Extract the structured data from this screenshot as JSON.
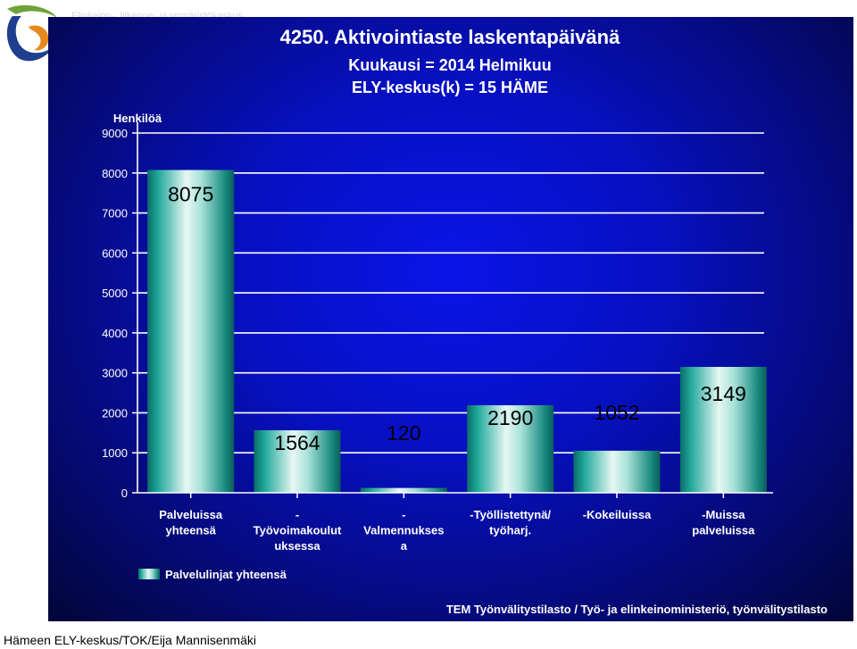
{
  "header": {
    "faint_text": "Elinkeino-, liikenne- ja ympäristökeskus"
  },
  "footer": {
    "text": "Hämeen ELY-keskus/TOK/Eija Mannisenmäki"
  },
  "colors": {
    "panel_background": "#0710c0",
    "bar_fill": "#1fa79a",
    "bar_highlight": "#e6f7f3",
    "value_label": "#000000"
  },
  "chart_data": {
    "type": "bar",
    "title": [
      "4250. Aktivointiaste laskentapäivänä",
      "Kuukausi = 2014 Helmikuu",
      "ELY-keskus(k) = 15 HÄME"
    ],
    "ylabel": "Henkilöä",
    "xlabel": "",
    "ylim": [
      0,
      9000
    ],
    "yticks": [
      0,
      1000,
      2000,
      3000,
      4000,
      5000,
      6000,
      7000,
      8000,
      9000
    ],
    "grid": true,
    "categories": [
      [
        "Palveluissa",
        "yhteensä"
      ],
      [
        "-",
        "Työvoimakoulut",
        "uksessa"
      ],
      [
        "-",
        "Valmennukses",
        "a"
      ],
      [
        "-Työllistettynä/",
        "työharj."
      ],
      [
        "-Kokeiluissa"
      ],
      [
        "-Muissa",
        "palveluissa"
      ]
    ],
    "series": [
      {
        "name": "Palvelulinjat yhteensä",
        "values": [
          8075,
          1564,
          120,
          2190,
          1052,
          3149
        ]
      }
    ],
    "legend_position": "bottom-left",
    "source": "TEM Työnvälitystilasto / Työ- ja elinkeinoministeriö, työnvälitystilasto"
  }
}
